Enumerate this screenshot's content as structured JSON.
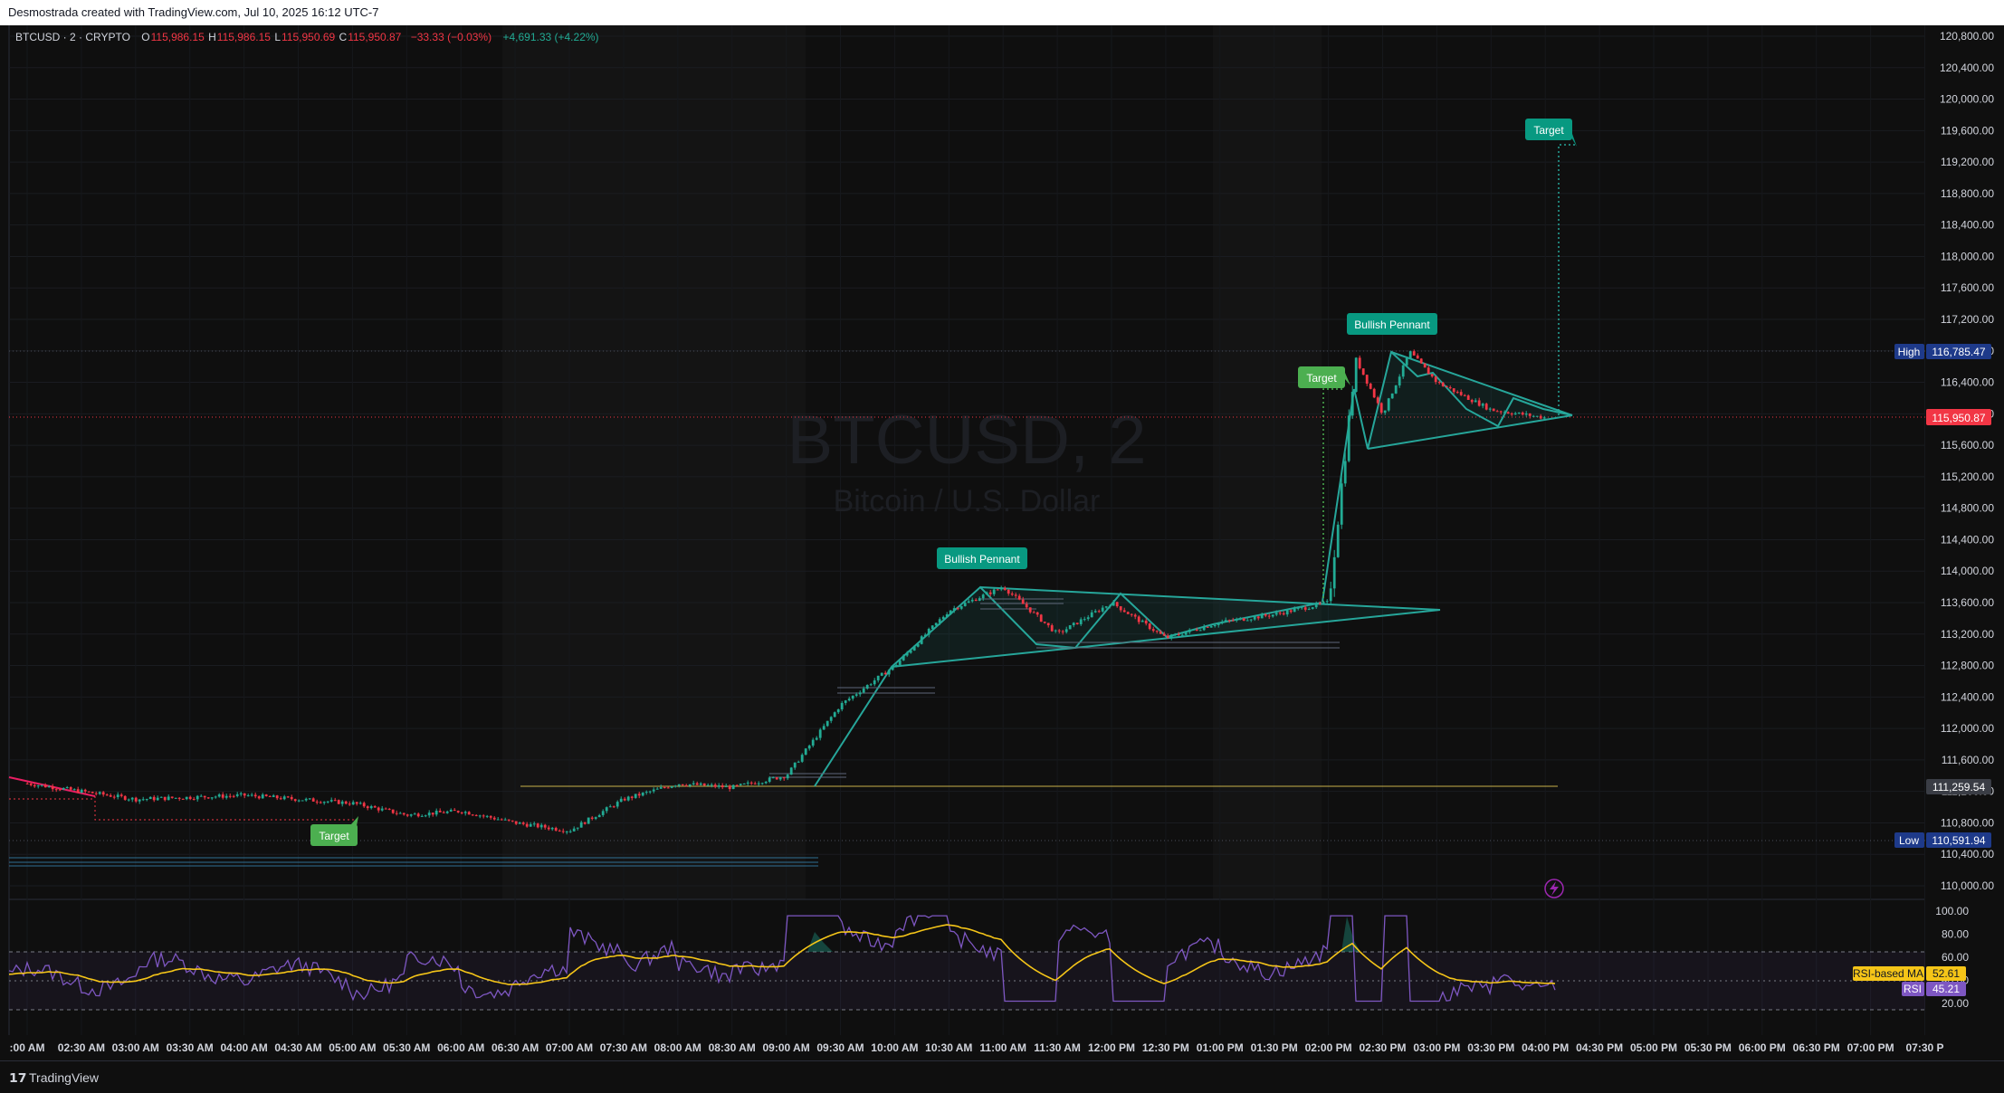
{
  "header": {
    "caption": "Desmostrada created with TradingView.com, Jul 10, 2025 16:12 UTC-7"
  },
  "legend": {
    "symbol": "BTCUSD · 2 · CRYPTO",
    "open_key": "O",
    "open": "115,986.15",
    "high_key": "H",
    "high": "115,986.15",
    "low_key": "L",
    "low": "115,950.69",
    "close_key": "C",
    "close": "115,950.87",
    "change": "−33.33 (−0.03%)",
    "session_change": "+4,691.33 (+4.22%)"
  },
  "watermark": {
    "title": "BTCUSD, 2",
    "subtitle": "Bitcoin / U.S. Dollar"
  },
  "footer": {
    "logo_glyph": "𝟭𝟳",
    "brand": "TradingView"
  },
  "colors": {
    "up": "#22ab94",
    "down": "#f23645",
    "pattern": "#26a69a",
    "rsi": "#7e57c2",
    "rsi_ma": "#f5c518",
    "support": "#c9b24a",
    "label_green": "#4caf50",
    "label_teal": "#089981",
    "axis_tag_dark": "#1e3a8a"
  },
  "annotations": [
    {
      "text": "Target",
      "style": "green"
    },
    {
      "text": "Bullish Pennant",
      "style": "teal"
    },
    {
      "text": "Target",
      "style": "green"
    },
    {
      "text": "Bullish Pennant",
      "style": "teal"
    },
    {
      "text": "Target",
      "style": "teal"
    }
  ],
  "price_tags": {
    "high_label": "High",
    "high_value": "116,785.47",
    "low_label": "Low",
    "low_value": "110,591.94",
    "last_value": "115,950.87",
    "support_value": "111,259.54"
  },
  "rsi_tags": {
    "ma_label": "RSI-based MA",
    "ma_value": "52.61",
    "rsi_label": "RSI",
    "rsi_value": "45.21"
  },
  "chart_data": {
    "type": "candlestick",
    "symbol": "BTCUSD",
    "ylim": [
      109800,
      121000
    ],
    "yticks": [
      "110,000.00",
      "110,400.00",
      "110,800.00",
      "111,200.00",
      "111,600.00",
      "112,000.00",
      "112,400.00",
      "112,800.00",
      "113,200.00",
      "113,600.00",
      "114,000.00",
      "114,400.00",
      "114,800.00",
      "115,200.00",
      "115,600.00",
      "116,000.00",
      "116,400.00",
      "116,800.00",
      "117,200.00",
      "117,600.00",
      "118,000.00",
      "118,400.00",
      "118,800.00",
      "119,200.00",
      "119,600.00",
      "120,000.00",
      "120,400.00",
      "120,800.00"
    ],
    "xticks": [
      ":00 AM",
      "02:30 AM",
      "03:00 AM",
      "03:30 AM",
      "04:00 AM",
      "04:30 AM",
      "05:00 AM",
      "05:30 AM",
      "06:00 AM",
      "06:30 AM",
      "07:00 AM",
      "07:30 AM",
      "08:00 AM",
      "08:30 AM",
      "09:00 AM",
      "09:30 AM",
      "10:00 AM",
      "10:30 AM",
      "11:00 AM",
      "11:30 AM",
      "12:00 PM",
      "12:30 PM",
      "01:00 PM",
      "01:30 PM",
      "02:00 PM",
      "02:30 PM",
      "03:00 PM",
      "03:30 PM",
      "04:00 PM",
      "04:30 PM",
      "05:00 PM",
      "05:30 PM",
      "06:00 PM",
      "06:30 PM",
      "07:00 PM",
      "07:30 P"
    ],
    "price_path": [
      [
        "02:00 AM",
        111300
      ],
      [
        "03:00 AM",
        111100
      ],
      [
        "04:00 AM",
        111150
      ],
      [
        "05:00 AM",
        111050
      ],
      [
        "05:30 AM",
        110900
      ],
      [
        "06:00 AM",
        110950
      ],
      [
        "06:30 AM",
        110800
      ],
      [
        "07:00 AM",
        110700
      ],
      [
        "07:30 AM",
        111100
      ],
      [
        "08:00 AM",
        111300
      ],
      [
        "08:30 AM",
        111250
      ],
      [
        "09:00 AM",
        111400
      ],
      [
        "09:30 AM",
        112300
      ],
      [
        "10:00 AM",
        112800
      ],
      [
        "10:30 AM",
        113500
      ],
      [
        "11:00 AM",
        113800
      ],
      [
        "11:30 AM",
        113200
      ],
      [
        "12:00 PM",
        113600
      ],
      [
        "12:30 PM",
        113150
      ],
      [
        "01:00 PM",
        113350
      ],
      [
        "01:30 PM",
        113450
      ],
      [
        "02:00 PM",
        113600
      ],
      [
        "02:15 PM",
        116700
      ],
      [
        "02:30 PM",
        116000
      ],
      [
        "02:45 PM",
        116785
      ],
      [
        "03:00 PM",
        116400
      ],
      [
        "03:30 PM",
        116050
      ],
      [
        "04:00 PM",
        115951
      ]
    ],
    "high": 116785.47,
    "low": 110591.94,
    "last": 115950.87,
    "support_level": 111259.54,
    "patterns": [
      "Bullish Pennant",
      "Bullish Pennant"
    ],
    "targets": [
      "Target",
      "Target",
      "Target"
    ],
    "rsi": {
      "ylim": [
        10,
        105
      ],
      "yticks": [
        "100.00",
        "80.00",
        "60.00",
        "40.00",
        "20.00"
      ],
      "upper_band": 70,
      "mid": 50,
      "lower_band": 30,
      "last_rsi": 45.21,
      "last_ma": 52.61
    },
    "grid": true
  }
}
